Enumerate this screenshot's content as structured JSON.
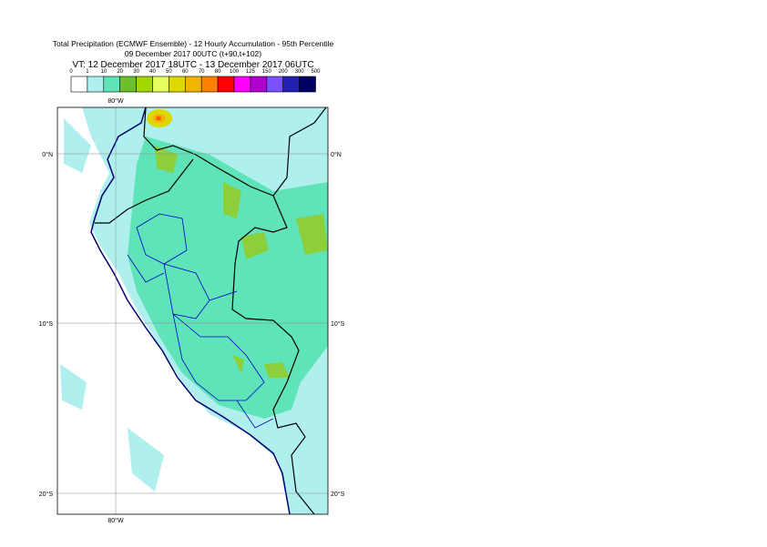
{
  "header": {
    "title": "Total Precipitation (ECMWF Ensemble) - 12 Hourly Accumulation - 95th Percentile",
    "subtitle": "09 December 2017 00UTC (t+90,t+102)",
    "valid_time": "VT: 12 December 2017 18UTC - 13 December 2017 06UTC"
  },
  "legend": {
    "labels": [
      "0",
      "1",
      "10",
      "20",
      "30",
      "40",
      "50",
      "60",
      "70",
      "80",
      "100",
      "125",
      "150",
      "200",
      "300",
      "500"
    ],
    "colors": [
      "#ffffff",
      "#aff0ef",
      "#5fe3b8",
      "#6bbf2a",
      "#a0d800",
      "#e8ff60",
      "#dcd800",
      "#f3b500",
      "#ff8000",
      "#ff0000",
      "#ff00ff",
      "#b000d0",
      "#7a50ff",
      "#2222b0",
      "#000060"
    ]
  },
  "map": {
    "lon_labels": [
      "80°W",
      "80°W"
    ],
    "lat_labels_left": [
      "0°N",
      "10°S",
      "20°S"
    ],
    "lat_labels_right": [
      "0°N",
      "10°S",
      "20°S"
    ]
  }
}
